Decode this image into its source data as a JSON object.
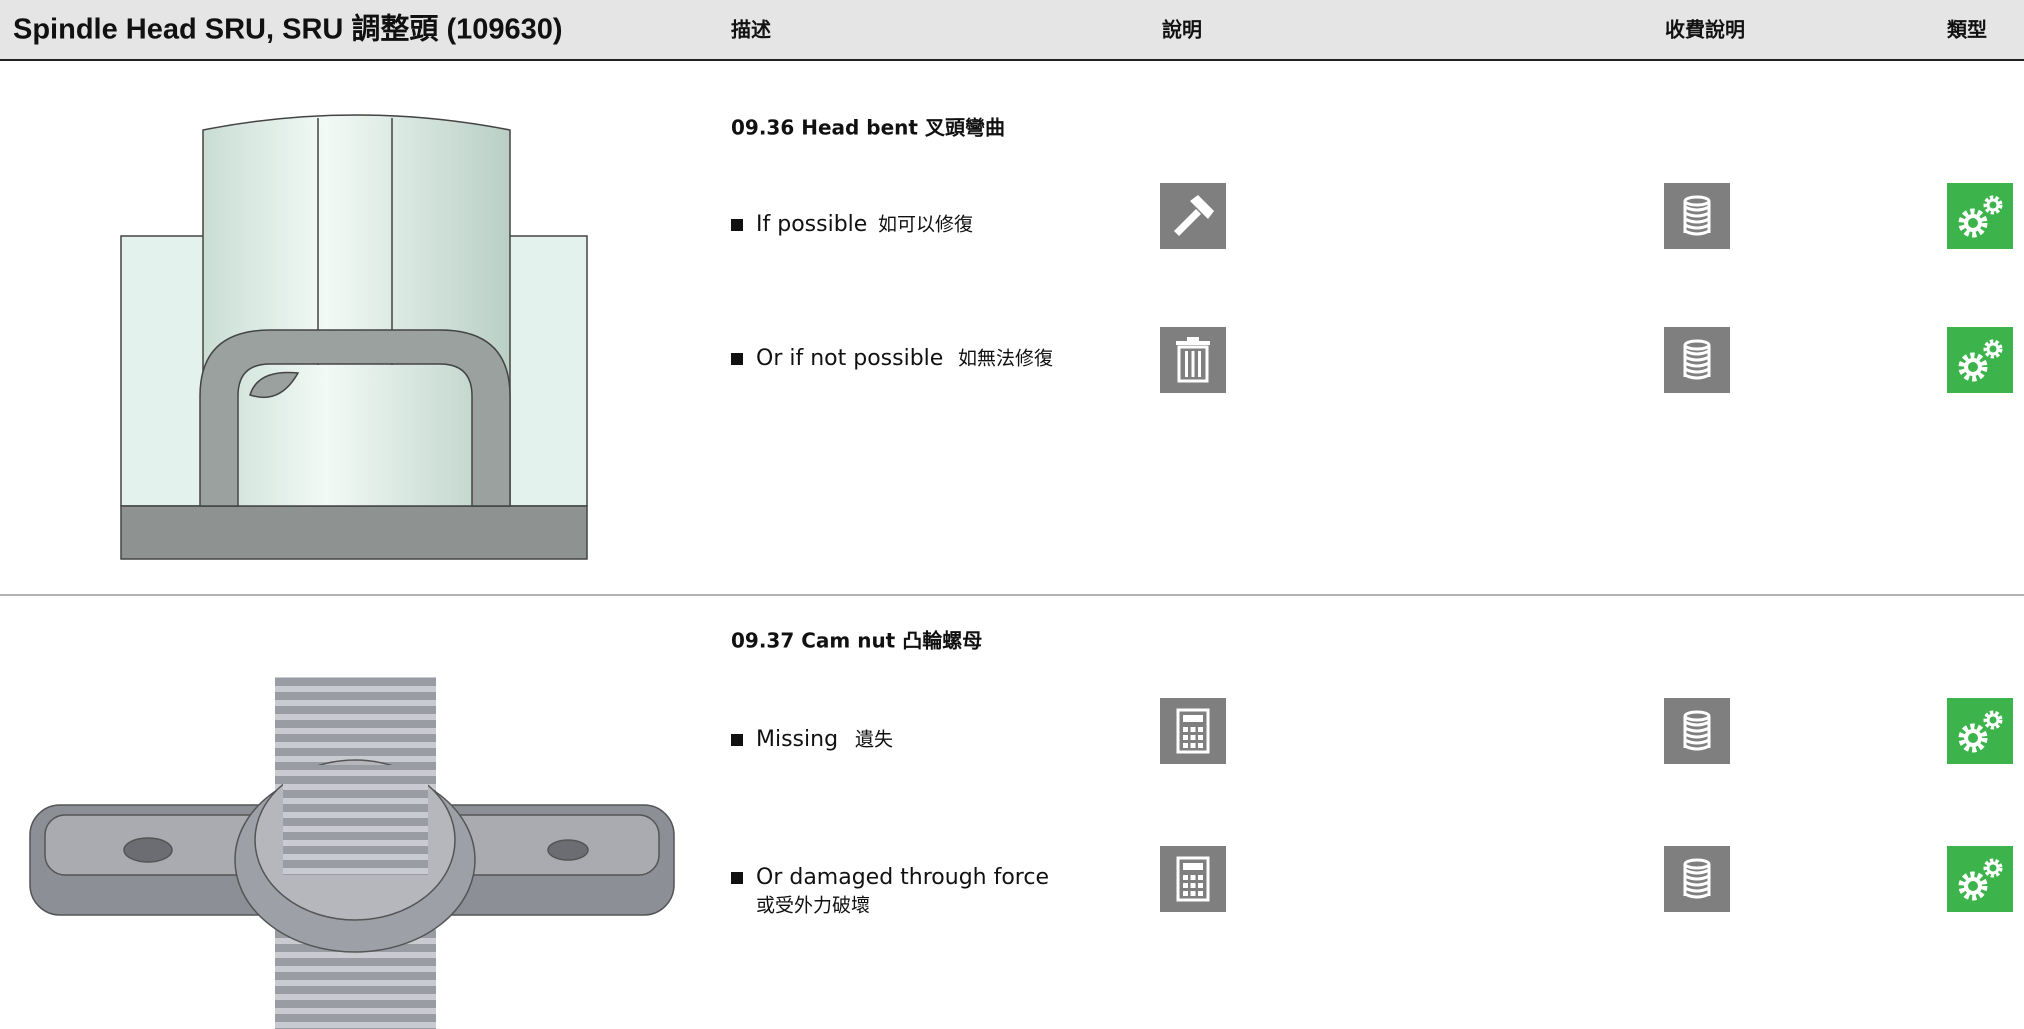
{
  "header": {
    "title": "Spindle Head SRU, SRU 調整頭 (109630)",
    "columns": [
      "描述",
      "說明",
      "收費說明",
      "類型"
    ]
  },
  "sections": [
    {
      "heading": "09.36 Head bent 叉頭彎曲",
      "items": [
        {
          "en": "If possible",
          "zh": "如可以修復"
        },
        {
          "en": "Or if not possible",
          "zh": "如無法修復"
        }
      ]
    },
    {
      "heading": "09.37 Cam nut 凸輪螺母",
      "items": [
        {
          "en": "Missing",
          "zh": "遺失"
        },
        {
          "en": "Or damaged through force",
          "zh": "或受外力破壞"
        }
      ]
    }
  ]
}
